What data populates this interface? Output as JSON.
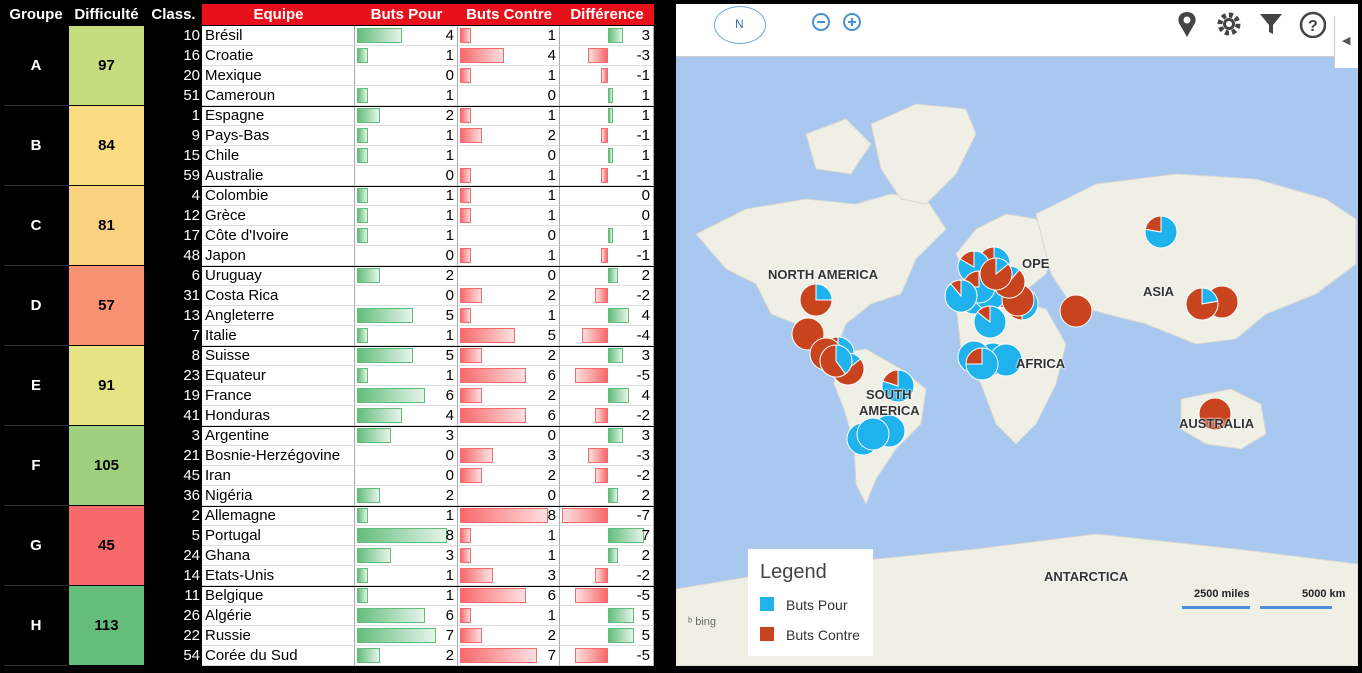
{
  "headers": {
    "groupe": "Groupe",
    "difficulte": "Difficulté",
    "class": "Class.",
    "equipe": "Equipe",
    "buts_pour": "Buts Pour",
    "buts_contre": "Buts Contre",
    "difference": "Différence"
  },
  "groups": [
    {
      "name": "A",
      "difficulty": "97",
      "color": "#c5dc7e",
      "teams": [
        {
          "rank": "10",
          "team": "Brésil",
          "bp": "4",
          "bc": "1",
          "diff": "3"
        },
        {
          "rank": "16",
          "team": "Croatie",
          "bp": "1",
          "bc": "4",
          "diff": "-3"
        },
        {
          "rank": "20",
          "team": "Mexique",
          "bp": "0",
          "bc": "1",
          "diff": "-1"
        },
        {
          "rank": "51",
          "team": "Cameroun",
          "bp": "1",
          "bc": "0",
          "diff": "1"
        }
      ]
    },
    {
      "name": "B",
      "difficulty": "84",
      "color": "#fcdc82",
      "teams": [
        {
          "rank": "1",
          "team": "Espagne",
          "bp": "2",
          "bc": "1",
          "diff": "1"
        },
        {
          "rank": "9",
          "team": "Pays-Bas",
          "bp": "1",
          "bc": "2",
          "diff": "-1"
        },
        {
          "rank": "15",
          "team": "Chile",
          "bp": "1",
          "bc": "0",
          "diff": "1"
        },
        {
          "rank": "59",
          "team": "Australie",
          "bp": "0",
          "bc": "1",
          "diff": "-1"
        }
      ]
    },
    {
      "name": "C",
      "difficulty": "81",
      "color": "#fad27f",
      "teams": [
        {
          "rank": "4",
          "team": "Colombie",
          "bp": "1",
          "bc": "1",
          "diff": "0"
        },
        {
          "rank": "12",
          "team": "Grèce",
          "bp": "1",
          "bc": "1",
          "diff": "0"
        },
        {
          "rank": "17",
          "team": "Côte d'Ivoire",
          "bp": "1",
          "bc": "0",
          "diff": "1"
        },
        {
          "rank": "48",
          "team": "Japon",
          "bp": "0",
          "bc": "1",
          "diff": "-1"
        }
      ]
    },
    {
      "name": "D",
      "difficulty": "57",
      "color": "#f99173",
      "teams": [
        {
          "rank": "6",
          "team": "Uruguay",
          "bp": "2",
          "bc": "0",
          "diff": "2"
        },
        {
          "rank": "31",
          "team": "Costa Rica",
          "bp": "0",
          "bc": "2",
          "diff": "-2"
        },
        {
          "rank": "13",
          "team": "Angleterre",
          "bp": "5",
          "bc": "1",
          "diff": "4"
        },
        {
          "rank": "7",
          "team": "Italie",
          "bp": "1",
          "bc": "5",
          "diff": "-4"
        }
      ]
    },
    {
      "name": "E",
      "difficulty": "91",
      "color": "#e5e383",
      "teams": [
        {
          "rank": "8",
          "team": "Suisse",
          "bp": "5",
          "bc": "2",
          "diff": "3"
        },
        {
          "rank": "23",
          "team": "Equateur",
          "bp": "1",
          "bc": "6",
          "diff": "-5"
        },
        {
          "rank": "19",
          "team": "France",
          "bp": "6",
          "bc": "2",
          "diff": "4"
        },
        {
          "rank": "41",
          "team": "Honduras",
          "bp": "4",
          "bc": "6",
          "diff": "-2"
        }
      ]
    },
    {
      "name": "F",
      "difficulty": "105",
      "color": "#9ed07f",
      "teams": [
        {
          "rank": "3",
          "team": "Argentine",
          "bp": "3",
          "bc": "0",
          "diff": "3"
        },
        {
          "rank": "21",
          "team": "Bosnie-Herzégovine",
          "bp": "0",
          "bc": "3",
          "diff": "-3"
        },
        {
          "rank": "45",
          "team": "Iran",
          "bp": "0",
          "bc": "2",
          "diff": "-2"
        },
        {
          "rank": "36",
          "team": "Nigéria",
          "bp": "2",
          "bc": "0",
          "diff": "2"
        }
      ]
    },
    {
      "name": "G",
      "difficulty": "45",
      "color": "#f8696b",
      "teams": [
        {
          "rank": "2",
          "team": "Allemagne",
          "bp": "1",
          "bc": "8",
          "diff": "-7"
        },
        {
          "rank": "5",
          "team": "Portugal",
          "bp": "8",
          "bc": "1",
          "diff": "7"
        },
        {
          "rank": "24",
          "team": "Ghana",
          "bp": "3",
          "bc": "1",
          "diff": "2"
        },
        {
          "rank": "14",
          "team": "Etats-Unis",
          "bp": "1",
          "bc": "3",
          "diff": "-2"
        }
      ]
    },
    {
      "name": "H",
      "difficulty": "113",
      "color": "#63be7b",
      "teams": [
        {
          "rank": "11",
          "team": "Belgique",
          "bp": "1",
          "bc": "6",
          "diff": "-5"
        },
        {
          "rank": "26",
          "team": "Algérie",
          "bp": "6",
          "bc": "1",
          "diff": "5"
        },
        {
          "rank": "22",
          "team": "Russie",
          "bp": "7",
          "bc": "2",
          "diff": "5"
        },
        {
          "rank": "54",
          "team": "Corée du Sud",
          "bp": "2",
          "bc": "7",
          "diff": "-5"
        }
      ]
    }
  ],
  "map": {
    "labels": {
      "north_america": "NORTH AMERICA",
      "europe": "OPE",
      "asia": "ASIA",
      "africa": "AFRICA",
      "south": "SOUTH",
      "america": "AMERICA",
      "australia": "AUSTRALIA",
      "antarctica": "ANTARCTICA"
    },
    "compass": "N",
    "legend": {
      "title": "Legend",
      "series1": "Buts Pour",
      "series2": "Buts Contre",
      "color1": "#1fb2ed",
      "color2": "#c8441e"
    },
    "scale": {
      "miles": "2500 miles",
      "km": "5000 km"
    },
    "bing": "bing"
  }
}
